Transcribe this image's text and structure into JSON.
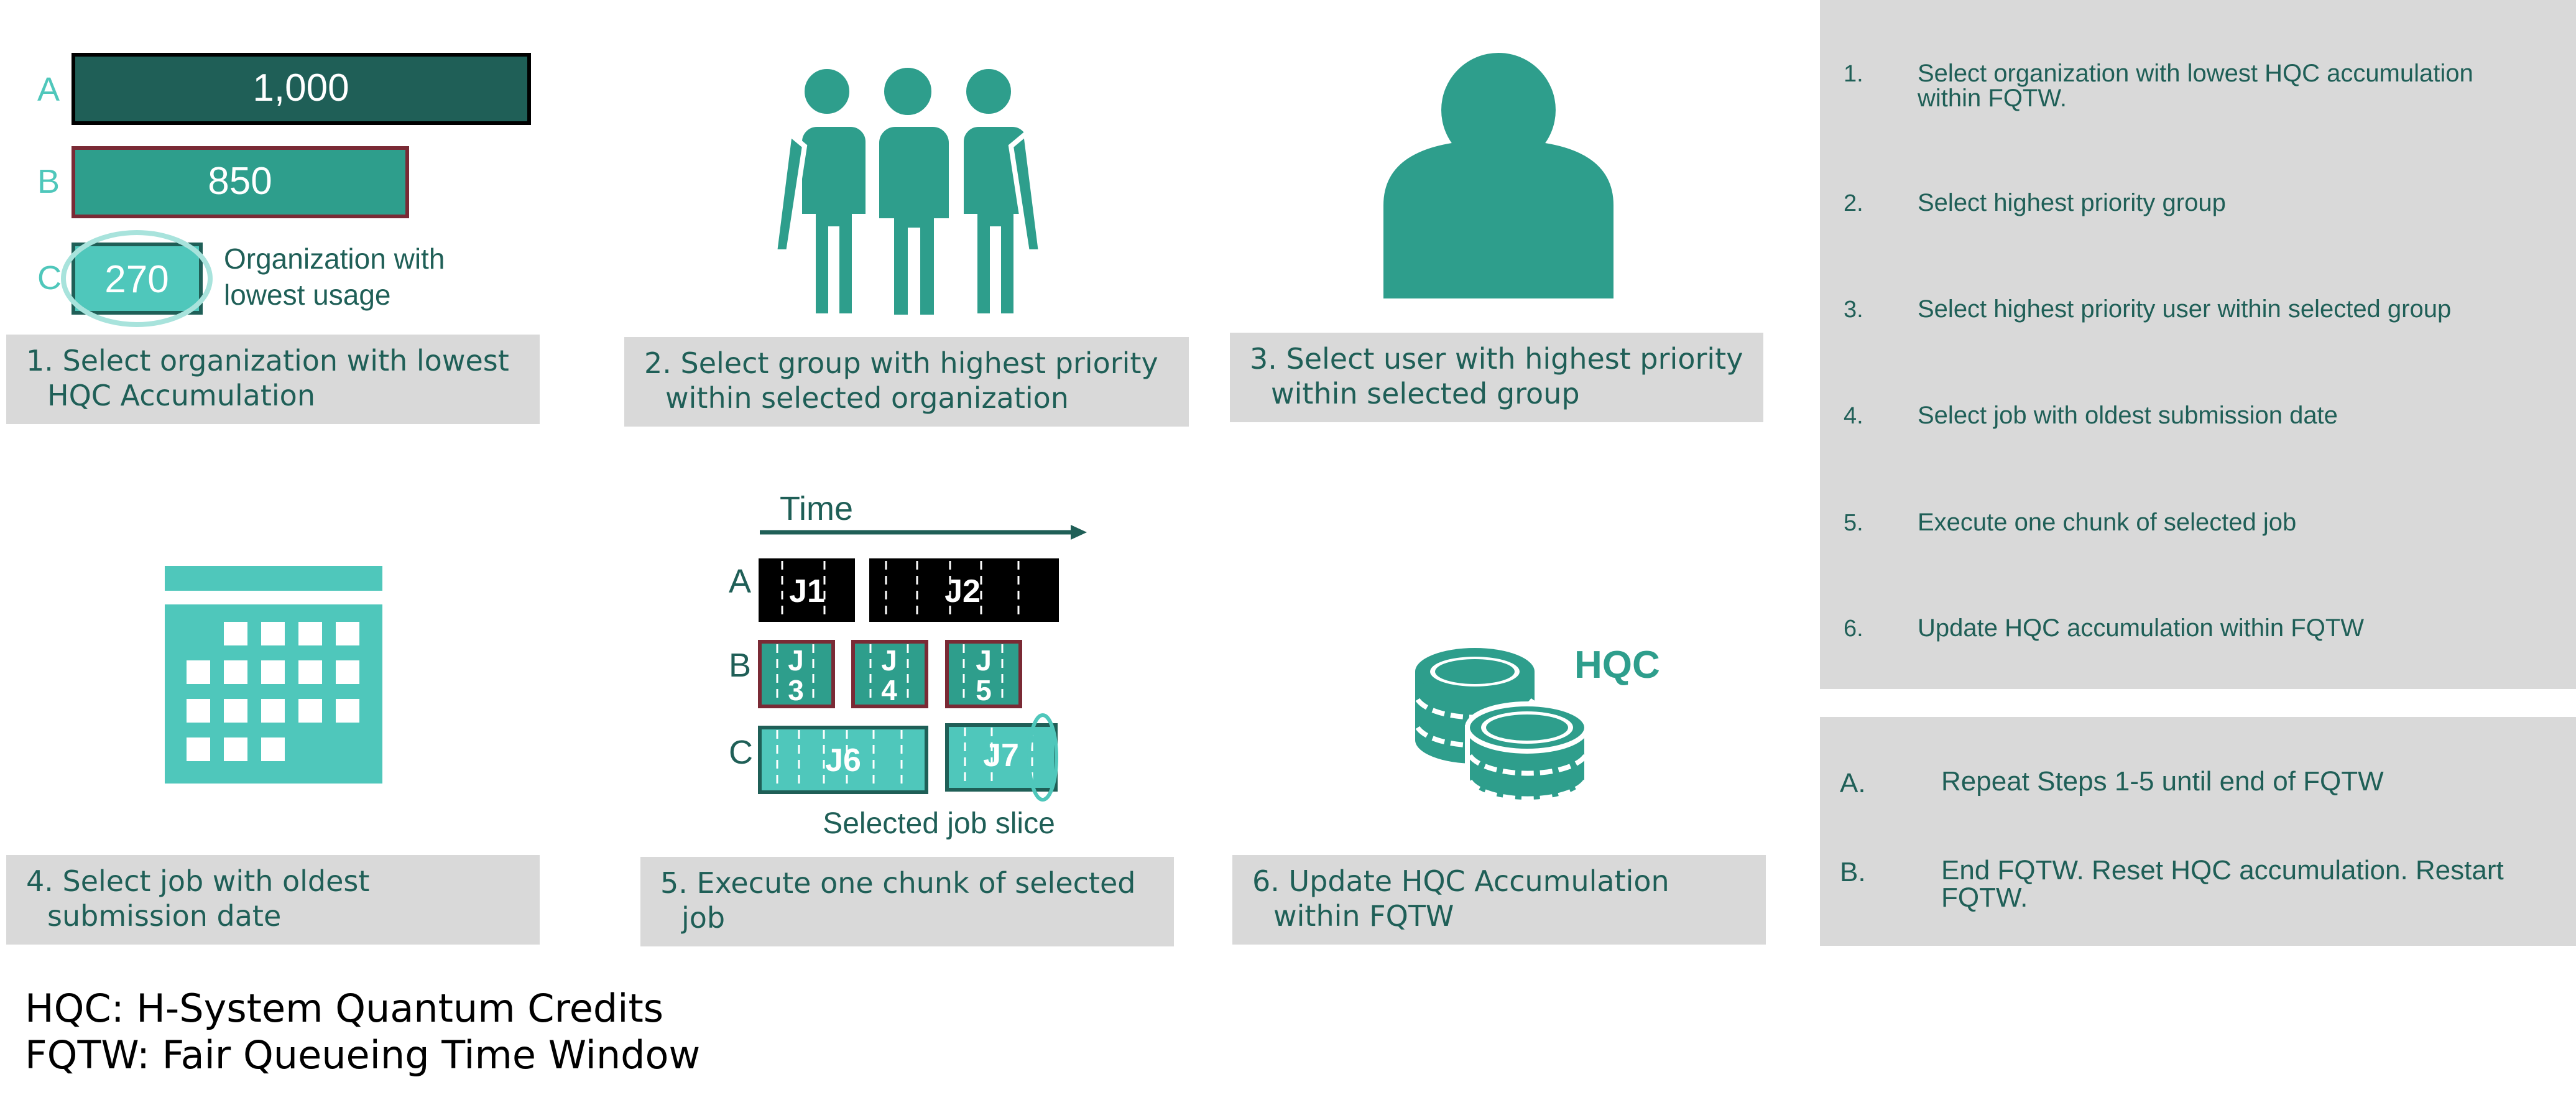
{
  "colors": {
    "dark_teal": "#1f5f57",
    "teal": "#2e9e8c",
    "light_teal": "#4fc7bb",
    "grey_panel": "#d9d9d9",
    "job_border": "#7a2a35",
    "black": "#000000"
  },
  "usage": {
    "rows": [
      {
        "label": "A",
        "value": "1,000"
      },
      {
        "label": "B",
        "value": "850"
      },
      {
        "label": "C",
        "value": "270"
      }
    ],
    "annotation_line1": "Organization with",
    "annotation_line2": "lowest usage"
  },
  "captions": {
    "c1_l1": "1. Select organization with lowest",
    "c1_l2": "HQC Accumulation",
    "c2_l1": "2. Select group with highest priority",
    "c2_l2": "within selected organization",
    "c3_l1": "3. Select user with highest priority",
    "c3_l2": "within selected group",
    "c4_l1": "4. Select job with oldest",
    "c4_l2": "submission date",
    "c5_l1": "5. Execute one chunk of selected",
    "c5_l2": "job",
    "c6_l1": "6. Update HQC Accumulation",
    "c6_l2": "within FQTW"
  },
  "timeline": {
    "time_label": "Time",
    "rows": [
      "A",
      "B",
      "C"
    ],
    "jobs": {
      "j1": "J1",
      "j2": "J2",
      "j3_a": "J",
      "j3_b": "3",
      "j4_a": "J",
      "j4_b": "4",
      "j5_a": "J",
      "j5_b": "5",
      "j6": "J6",
      "j7": "J7"
    },
    "selected_label": "Selected job slice"
  },
  "hqc_label": "HQC",
  "steps": [
    {
      "num": "1.",
      "line1": "Select organization with lowest HQC accumulation",
      "line2": "within FQTW."
    },
    {
      "num": "2.",
      "line1": "Select highest priority group",
      "line2": ""
    },
    {
      "num": "3.",
      "line1": "Select highest priority user within selected group",
      "line2": ""
    },
    {
      "num": "4.",
      "line1": "Select job with oldest submission date",
      "line2": ""
    },
    {
      "num": "5.",
      "line1": "Execute one chunk of selected job",
      "line2": ""
    },
    {
      "num": "6.",
      "line1": "Update HQC accumulation within FQTW",
      "line2": ""
    }
  ],
  "notes": [
    {
      "letter": "A.",
      "line1": "Repeat Steps 1-5 until end of FQTW",
      "line2": ""
    },
    {
      "letter": "B.",
      "line1": "End FQTW. Reset HQC accumulation. Restart",
      "line2": "FQTW."
    }
  ],
  "legend": {
    "line1": "HQC: H-System Quantum Credits",
    "line2": "FQTW: Fair Queueing Time Window"
  }
}
